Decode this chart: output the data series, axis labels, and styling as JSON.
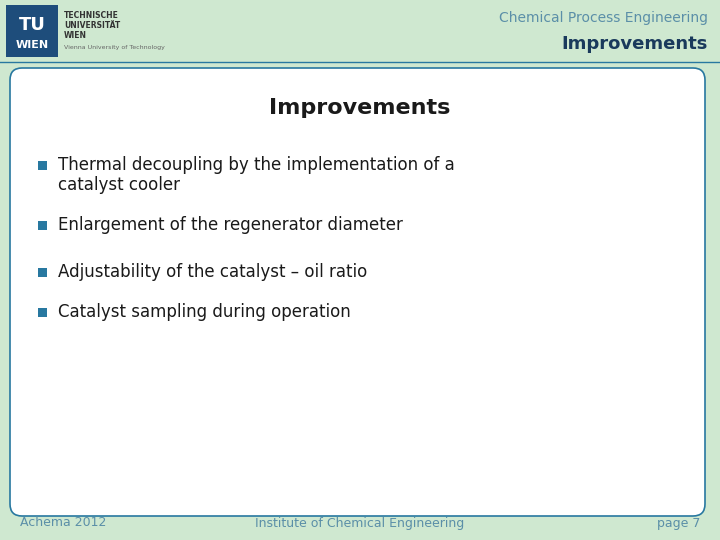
{
  "header_bg_color": "#cfe8d0",
  "slide_bg_color": "#cfe8d0",
  "content_bg_color": "#ffffff",
  "header_title_line1": "Chemical Process Engineering",
  "header_title_line2": "Improvements",
  "header_title_color": "#5b8fa8",
  "header_subtitle_color": "#1a3a5c",
  "slide_title": "Improvements",
  "slide_title_color": "#1a1a1a",
  "slide_title_fontsize": 16,
  "bullet_color": "#2878a0",
  "bullet_text_color": "#1a1a1a",
  "bullet_fontsize": 12,
  "bullets": [
    "Thermal decoupling by the implementation of a\n  catalyst cooler",
    "Enlargement of the regenerator diameter",
    "Adjustability of the catalyst – oil ratio",
    "Catalyst sampling during operation"
  ],
  "footer_bg_color": "#cfe8d0",
  "footer_left": "Achema 2012",
  "footer_center": "Institute of Chemical Engineering",
  "footer_right": "page 7",
  "footer_color": "#5b8fa8",
  "footer_fontsize": 9,
  "border_color": "#2878a0",
  "logo_bg_color": "#1e4d7b",
  "logo_tu_color": "#ffffff",
  "logo_wien_color": "#ffffff",
  "univ_text_color": "#333333",
  "univ_small_color": "#666666"
}
